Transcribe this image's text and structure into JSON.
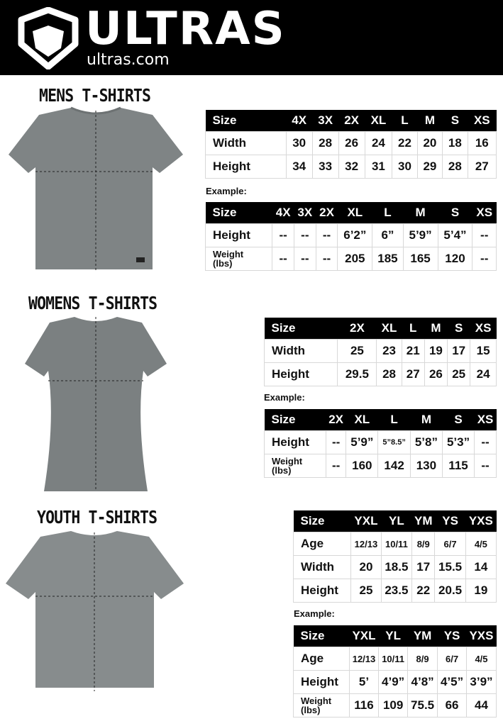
{
  "brand": {
    "name": "ULTRAS",
    "url": "ultras.com"
  },
  "example_label": "Example:",
  "sections": {
    "mens": {
      "title": "MENS T-SHIRTS",
      "size_table": {
        "headers": [
          "Size",
          "4X",
          "3X",
          "2X",
          "XL",
          "L",
          "M",
          "S",
          "XS"
        ],
        "rows": [
          [
            "Width",
            "30",
            "28",
            "26",
            "24",
            "22",
            "20",
            "18",
            "16"
          ],
          [
            "Height",
            "34",
            "33",
            "32",
            "31",
            "30",
            "29",
            "28",
            "27"
          ]
        ]
      },
      "example_table": {
        "headers": [
          "Size",
          "4X",
          "3X",
          "2X",
          "XL",
          "L",
          "M",
          "S",
          "XS"
        ],
        "rows": [
          [
            "Height",
            "--",
            "--",
            "--",
            "6’2”",
            "6”",
            "5’9”",
            "5’4”",
            "--"
          ],
          [
            "Weight (lbs)",
            "--",
            "--",
            "--",
            "205",
            "185",
            "165",
            "120",
            "--"
          ]
        ]
      }
    },
    "womens": {
      "title": "WOMENS T-SHIRTS",
      "size_table": {
        "headers": [
          "Size",
          "2X",
          "XL",
          "L",
          "M",
          "S",
          "XS"
        ],
        "rows": [
          [
            "Width",
            "25",
            "23",
            "21",
            "19",
            "17",
            "15"
          ],
          [
            "Height",
            "29.5",
            "28",
            "27",
            "26",
            "25",
            "24"
          ]
        ]
      },
      "example_table": {
        "headers": [
          "Size",
          "2X",
          "XL",
          "L",
          "M",
          "S",
          "XS"
        ],
        "rows": [
          [
            "Height",
            "--",
            "5’9”",
            "5”8.5”",
            "5’8”",
            "5’3”",
            "--"
          ],
          [
            "Weight (lbs)",
            "--",
            "160",
            "142",
            "130",
            "115",
            "--"
          ]
        ]
      }
    },
    "youth": {
      "title": "YOUTH T-SHIRTS",
      "size_table": {
        "headers": [
          "Size",
          "YXL",
          "YL",
          "YM",
          "YS",
          "YXS"
        ],
        "rows": [
          [
            "Age",
            "12/13",
            "10/11",
            "8/9",
            "6/7",
            "4/5"
          ],
          [
            "Width",
            "20",
            "18.5",
            "17",
            "15.5",
            "14"
          ],
          [
            "Height",
            "25",
            "23.5",
            "22",
            "20.5",
            "19"
          ]
        ]
      },
      "example_table": {
        "headers": [
          "Size",
          "YXL",
          "YL",
          "YM",
          "YS",
          "YXS"
        ],
        "rows": [
          [
            "Age",
            "12/13",
            "10/11",
            "8/9",
            "6/7",
            "4/5"
          ],
          [
            "Height",
            "5’",
            "4’9”",
            "4’8”",
            "4’5”",
            "3’9”"
          ],
          [
            "Weight (lbs)",
            "116",
            "109",
            "75.5",
            "66",
            "44"
          ]
        ]
      }
    }
  },
  "colors": {
    "header_bg": "#000000",
    "shirt": "#7f8485",
    "table_header": "#000000"
  }
}
